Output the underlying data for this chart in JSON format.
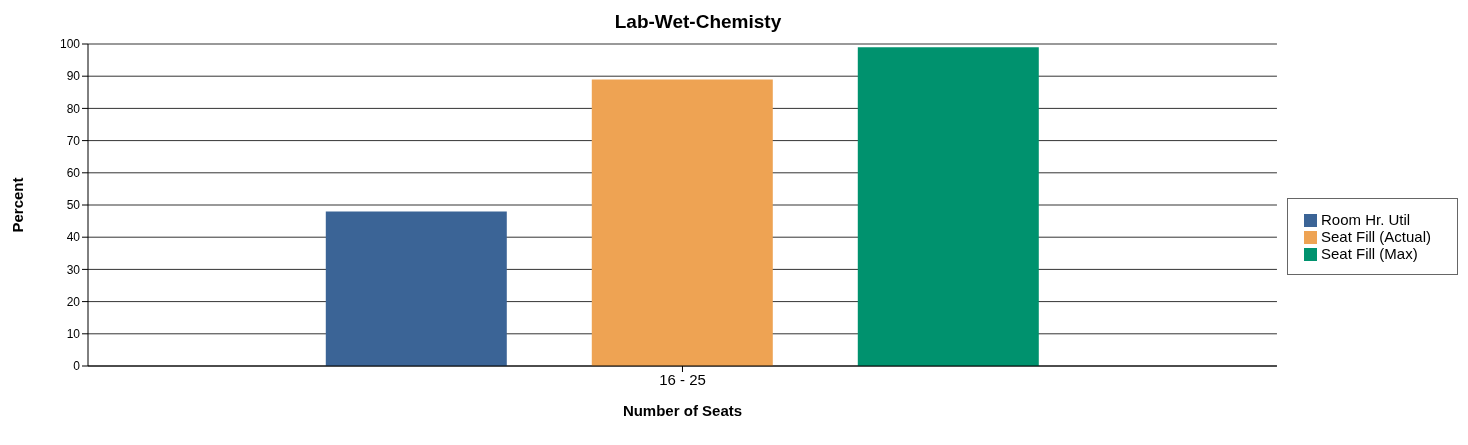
{
  "chart_data": {
    "type": "bar",
    "title": "Lab-Wet-Chemisty",
    "xlabel": "Number of Seats",
    "ylabel": "Percent",
    "categories": [
      "16 - 25"
    ],
    "series": [
      {
        "name": "Room Hr. Util",
        "color": "#3b6496",
        "values": [
          48
        ]
      },
      {
        "name": "Seat Fill (Actual)",
        "color": "#eea353",
        "values": [
          89
        ]
      },
      {
        "name": "Seat Fill (Max)",
        "color": "#00926e",
        "values": [
          99
        ]
      }
    ],
    "ylim": [
      0,
      100
    ],
    "yticks": [
      0,
      10,
      20,
      30,
      40,
      50,
      60,
      70,
      80,
      90,
      100
    ],
    "grid": "y",
    "legend": "right"
  }
}
